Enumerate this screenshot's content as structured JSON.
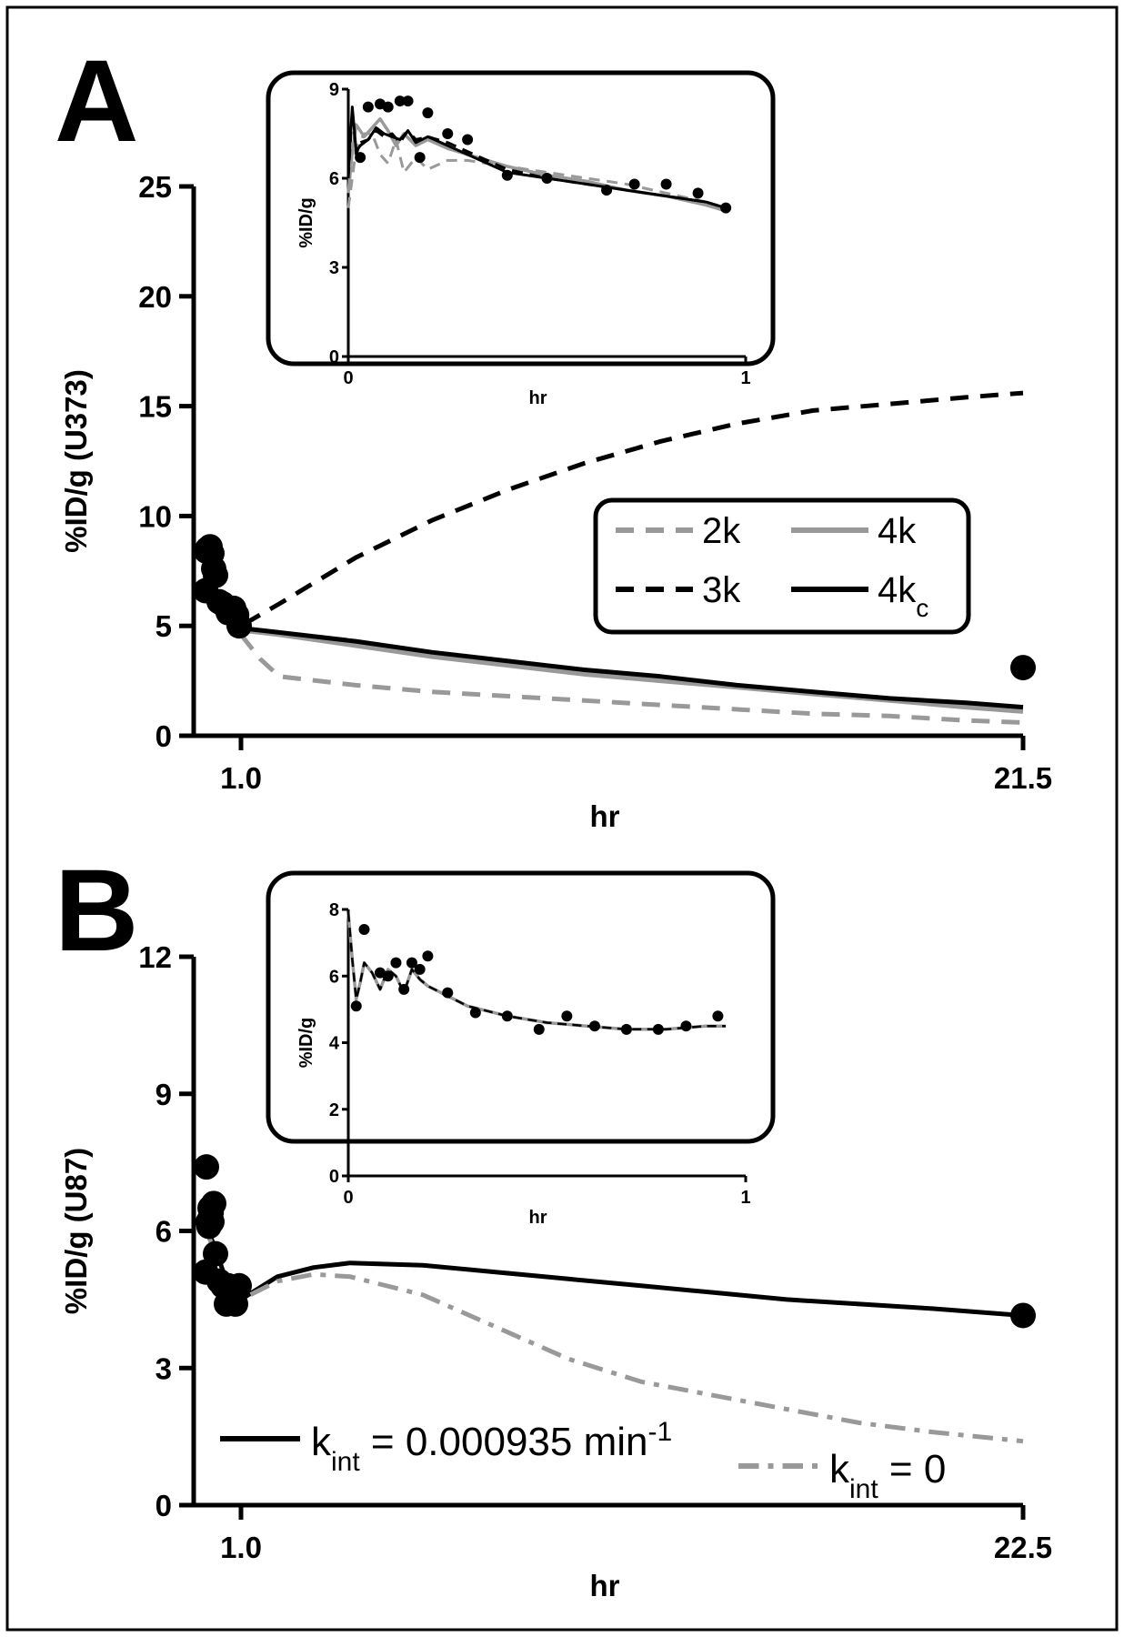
{
  "chart_data": [
    {
      "panel": "A",
      "type": "line",
      "ylabel": "%ID/g (U373)",
      "xlabel": "hr",
      "ylim": [
        0,
        25
      ],
      "yticks": [
        "0",
        "5",
        "10",
        "15",
        "20",
        "25"
      ],
      "xticks": [
        {
          "value": 1.0,
          "label": "1.0"
        },
        {
          "value": 21.5,
          "label": "21.5"
        }
      ],
      "legend": {
        "position": "center-right",
        "entries": [
          {
            "key": "2k",
            "label": "2k",
            "sub": "",
            "color": "#999999",
            "style": "dashed"
          },
          {
            "key": "4k",
            "label": "4k",
            "sub": "",
            "color": "#999999",
            "style": "solid"
          },
          {
            "key": "3k",
            "label": "3k",
            "sub": "",
            "color": "#000000",
            "style": "dashed"
          },
          {
            "key": "4kc",
            "label": "4k",
            "sub": "c",
            "color": "#000000",
            "style": "solid"
          }
        ]
      },
      "points": [
        [
          0.03,
          6.6
        ],
        [
          0.05,
          8.4
        ],
        [
          0.08,
          8.5
        ],
        [
          0.1,
          8.4
        ],
        [
          0.13,
          8.5
        ],
        [
          0.15,
          8.6
        ],
        [
          0.2,
          8.3
        ],
        [
          0.25,
          7.6
        ],
        [
          0.3,
          7.3
        ],
        [
          0.4,
          6.1
        ],
        [
          0.5,
          6.0
        ],
        [
          0.65,
          5.6
        ],
        [
          0.72,
          5.8
        ],
        [
          0.8,
          5.8
        ],
        [
          0.88,
          5.5
        ],
        [
          0.95,
          5.0
        ],
        [
          21.5,
          3.1
        ]
      ],
      "series": [
        {
          "key": "3k",
          "x": [
            0.05,
            0.3,
            0.6,
            1.0,
            2,
            4,
            6,
            8,
            10,
            12,
            14,
            16,
            18,
            20,
            21.5
          ],
          "y": [
            7.0,
            6.6,
            5.7,
            5.0,
            6.0,
            8.1,
            9.8,
            11.2,
            12.4,
            13.4,
            14.2,
            14.8,
            15.1,
            15.4,
            15.6
          ]
        },
        {
          "key": "2k",
          "x": [
            0.05,
            0.3,
            0.6,
            1.0,
            1.5,
            2,
            4,
            6,
            8,
            10,
            12,
            14,
            16,
            18,
            20,
            21.5
          ],
          "y": [
            6.8,
            6.3,
            5.7,
            4.6,
            3.5,
            2.7,
            2.3,
            2.0,
            1.8,
            1.6,
            1.4,
            1.2,
            1.0,
            0.9,
            0.7,
            0.6
          ]
        },
        {
          "key": "4k",
          "x": [
            0.05,
            0.3,
            0.6,
            1.0,
            2,
            4,
            6,
            8,
            10,
            12,
            14,
            16,
            18,
            20,
            21.5
          ],
          "y": [
            7.5,
            6.5,
            5.8,
            4.8,
            4.6,
            4.1,
            3.6,
            3.2,
            2.8,
            2.5,
            2.2,
            1.9,
            1.6,
            1.3,
            1.1
          ]
        },
        {
          "key": "4kc",
          "x": [
            0.05,
            0.3,
            0.6,
            1.0,
            2,
            4,
            6,
            8,
            10,
            12,
            14,
            16,
            18,
            20,
            21.5
          ],
          "y": [
            7.6,
            6.6,
            5.9,
            4.9,
            4.7,
            4.3,
            3.8,
            3.4,
            3.0,
            2.7,
            2.3,
            2.0,
            1.7,
            1.5,
            1.3
          ]
        }
      ],
      "inset": {
        "xlabel": "hr",
        "ylabel": "%ID/g",
        "xlim": [
          0,
          1
        ],
        "ylim": [
          0,
          9
        ],
        "xticks": [
          "0",
          "1"
        ],
        "yticks": [
          "0",
          "3",
          "6",
          "9"
        ],
        "points": [
          [
            0.03,
            6.7
          ],
          [
            0.05,
            8.4
          ],
          [
            0.08,
            8.5
          ],
          [
            0.1,
            8.4
          ],
          [
            0.13,
            8.6
          ],
          [
            0.15,
            8.6
          ],
          [
            0.18,
            6.7
          ],
          [
            0.2,
            8.2
          ],
          [
            0.25,
            7.5
          ],
          [
            0.3,
            7.3
          ],
          [
            0.4,
            6.1
          ],
          [
            0.5,
            6.0
          ],
          [
            0.65,
            5.6
          ],
          [
            0.72,
            5.8
          ],
          [
            0.8,
            5.8
          ],
          [
            0.88,
            5.5
          ],
          [
            0.95,
            5.0
          ]
        ],
        "series": [
          {
            "key": "2k",
            "x": [
              0,
              0.02,
              0.04,
              0.06,
              0.08,
              0.1,
              0.12,
              0.14,
              0.17,
              0.2,
              0.25,
              0.3,
              0.4,
              0.5,
              0.6,
              0.7,
              0.8,
              0.9,
              0.95
            ],
            "y": [
              5.0,
              7.0,
              7.5,
              7.5,
              6.8,
              6.5,
              7.3,
              6.2,
              6.7,
              6.3,
              6.6,
              6.6,
              6.4,
              6.2,
              6.0,
              5.8,
              5.5,
              5.2,
              5.0
            ]
          },
          {
            "key": "4k",
            "x": [
              0,
              0.01,
              0.02,
              0.04,
              0.06,
              0.08,
              0.1,
              0.12,
              0.14,
              0.17,
              0.2,
              0.25,
              0.3,
              0.4,
              0.5,
              0.6,
              0.7,
              0.8,
              0.9,
              0.95
            ],
            "y": [
              5.5,
              6.9,
              7.8,
              7.4,
              7.7,
              8.0,
              7.6,
              7.1,
              7.5,
              7.1,
              7.3,
              7.0,
              6.8,
              6.4,
              6.1,
              5.9,
              5.6,
              5.4,
              5.1,
              4.9
            ]
          },
          {
            "key": "3k",
            "x": [
              0,
              0.01,
              0.02,
              0.03,
              0.05,
              0.07,
              0.09,
              0.11,
              0.13,
              0.15,
              0.17,
              0.2,
              0.25,
              0.3,
              0.4,
              0.5,
              0.6,
              0.7,
              0.8,
              0.9,
              0.95
            ],
            "y": [
              6.0,
              8.3,
              6.8,
              7.2,
              7.3,
              7.6,
              7.4,
              7.5,
              7.2,
              7.6,
              7.3,
              7.4,
              7.2,
              6.9,
              6.3,
              6.0,
              5.8,
              5.6,
              5.4,
              5.2,
              5.0
            ]
          },
          {
            "key": "4kc",
            "x": [
              0,
              0.01,
              0.02,
              0.03,
              0.05,
              0.07,
              0.09,
              0.11,
              0.13,
              0.15,
              0.17,
              0.2,
              0.25,
              0.3,
              0.4,
              0.5,
              0.6,
              0.7,
              0.8,
              0.9,
              0.95
            ],
            "y": [
              6.2,
              8.4,
              6.9,
              7.1,
              7.3,
              7.7,
              7.5,
              7.4,
              7.3,
              7.6,
              7.2,
              7.4,
              7.1,
              6.8,
              6.2,
              6.0,
              5.8,
              5.6,
              5.4,
              5.2,
              5.0
            ]
          }
        ]
      }
    },
    {
      "panel": "B",
      "type": "line",
      "ylabel": "%ID/g (U87)",
      "xlabel": "hr",
      "ylim": [
        0,
        12
      ],
      "yticks": [
        "0",
        "3",
        "6",
        "9",
        "12"
      ],
      "xticks": [
        {
          "value": 1.0,
          "label": "1.0"
        },
        {
          "value": 22.5,
          "label": "22.5"
        }
      ],
      "legend": {
        "position": "bottom",
        "entries": [
          {
            "key": "kint",
            "label": "k",
            "sub": "int",
            "rest": " = 0.000935 min",
            "sup": "-1",
            "color": "#000000",
            "style": "solid"
          },
          {
            "key": "kint0",
            "label": "k",
            "sub": "int",
            "rest": " = 0",
            "sup": "",
            "color": "#999999",
            "style": "dashdot"
          }
        ]
      },
      "points": [
        [
          0.03,
          5.1
        ],
        [
          0.05,
          7.4
        ],
        [
          0.1,
          6.2
        ],
        [
          0.12,
          6.1
        ],
        [
          0.15,
          6.5
        ],
        [
          0.18,
          6.4
        ],
        [
          0.2,
          6.2
        ],
        [
          0.25,
          6.6
        ],
        [
          0.3,
          5.5
        ],
        [
          0.4,
          4.9
        ],
        [
          0.5,
          4.8
        ],
        [
          0.6,
          4.4
        ],
        [
          0.65,
          4.8
        ],
        [
          0.75,
          4.5
        ],
        [
          0.85,
          4.4
        ],
        [
          0.95,
          4.8
        ],
        [
          22.5,
          4.15
        ]
      ],
      "series": [
        {
          "key": "kint",
          "x": [
            0.05,
            0.3,
            0.6,
            1.0,
            2,
            3,
            4,
            6,
            8,
            10,
            12,
            14,
            16,
            18,
            20,
            22.5
          ],
          "y": [
            6.1,
            5.6,
            4.9,
            4.5,
            5.0,
            5.2,
            5.3,
            5.25,
            5.1,
            4.95,
            4.8,
            4.65,
            4.5,
            4.4,
            4.3,
            4.15
          ]
        },
        {
          "key": "kint0",
          "x": [
            0.05,
            0.3,
            0.6,
            1.0,
            2,
            3,
            4,
            6,
            8,
            10,
            12,
            14,
            16,
            18,
            20,
            22.5
          ],
          "y": [
            6.0,
            5.5,
            4.9,
            4.5,
            4.9,
            5.05,
            5.0,
            4.6,
            3.9,
            3.2,
            2.7,
            2.4,
            2.1,
            1.8,
            1.6,
            1.4
          ]
        }
      ],
      "inset": {
        "xlabel": "hr",
        "ylabel": "%ID/g",
        "xlim": [
          0,
          1
        ],
        "ylim": [
          0,
          8
        ],
        "xticks": [
          "0",
          "1"
        ],
        "yticks": [
          "0",
          "2",
          "4",
          "6",
          "8"
        ],
        "points": [
          [
            0.02,
            5.1
          ],
          [
            0.04,
            7.4
          ],
          [
            0.08,
            6.1
          ],
          [
            0.1,
            6.0
          ],
          [
            0.12,
            6.4
          ],
          [
            0.14,
            5.6
          ],
          [
            0.16,
            6.4
          ],
          [
            0.18,
            6.2
          ],
          [
            0.2,
            6.6
          ],
          [
            0.25,
            5.5
          ],
          [
            0.32,
            4.9
          ],
          [
            0.4,
            4.8
          ],
          [
            0.48,
            4.4
          ],
          [
            0.55,
            4.8
          ],
          [
            0.62,
            4.5
          ],
          [
            0.7,
            4.4
          ],
          [
            0.78,
            4.4
          ],
          [
            0.85,
            4.5
          ],
          [
            0.93,
            4.8
          ]
        ],
        "series": [
          {
            "key": "kint0",
            "x": [
              0,
              0.01,
              0.02,
              0.03,
              0.04,
              0.06,
              0.08,
              0.1,
              0.12,
              0.14,
              0.16,
              0.18,
              0.2,
              0.25,
              0.3,
              0.4,
              0.5,
              0.6,
              0.7,
              0.8,
              0.9,
              0.95
            ],
            "y": [
              7.9,
              6.5,
              5.3,
              5.8,
              6.4,
              6.1,
              5.6,
              6.2,
              6.0,
              5.5,
              6.2,
              5.9,
              5.7,
              5.4,
              5.1,
              4.8,
              4.6,
              4.5,
              4.4,
              4.4,
              4.5,
              4.5
            ]
          },
          {
            "key": "kint",
            "x": [
              0,
              0.01,
              0.02,
              0.03,
              0.04,
              0.06,
              0.08,
              0.1,
              0.12,
              0.14,
              0.16,
              0.18,
              0.2,
              0.25,
              0.3,
              0.4,
              0.5,
              0.6,
              0.7,
              0.8,
              0.9,
              0.95
            ],
            "y": [
              7.9,
              6.5,
              5.3,
              5.8,
              6.4,
              6.1,
              5.6,
              6.2,
              6.0,
              5.5,
              6.2,
              5.9,
              5.7,
              5.4,
              5.1,
              4.8,
              4.6,
              4.5,
              4.4,
              4.4,
              4.5,
              4.5
            ]
          }
        ]
      }
    }
  ]
}
